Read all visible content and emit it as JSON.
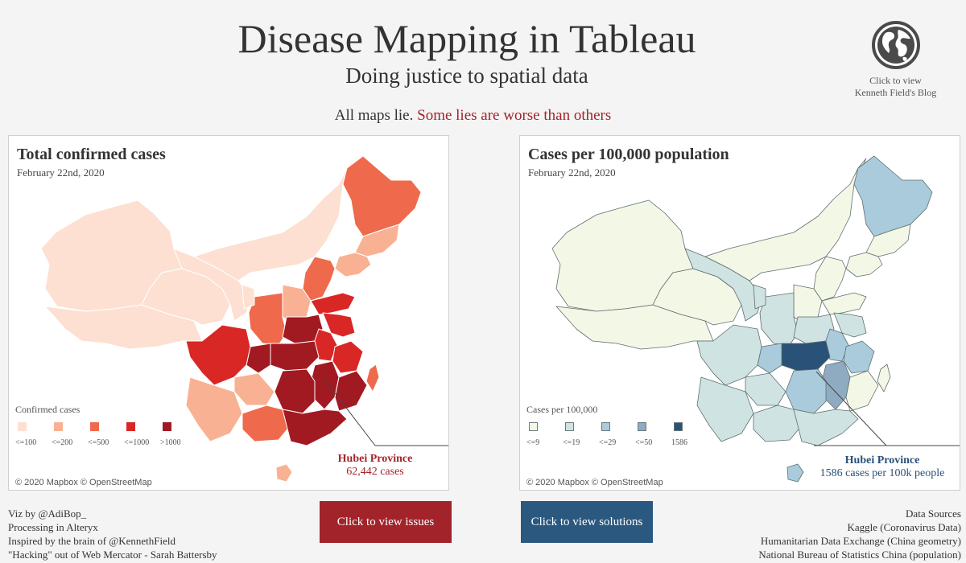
{
  "header": {
    "title": "Disease Mapping in Tableau",
    "subtitle": "Doing justice to spatial data",
    "tagline_plain": "All maps lie.",
    "tagline_red": "Some lies are worse than others",
    "highlight_color": "#a3232a"
  },
  "blog_link": {
    "icon": "globe-icon",
    "line1": "Click to view",
    "line2": "Kenneth Field's Blog"
  },
  "left_map": {
    "title": "Total confirmed cases",
    "date": "February 22nd, 2020",
    "legend_title": "Confirmed cases",
    "legend": [
      {
        "label": "<=100",
        "color": "#fde0d2"
      },
      {
        "label": "<=200",
        "color": "#f9b193"
      },
      {
        "label": "<=500",
        "color": "#ef6a4c"
      },
      {
        "label": "<=1000",
        "color": "#d92726"
      },
      {
        "label": ">1000",
        "color": "#a11a22"
      }
    ],
    "callout_name": "Hubei Province",
    "callout_value": "62,442 cases",
    "callout_color": "#a3232a",
    "credit": "© 2020 Mapbox © OpenStreetMap"
  },
  "right_map": {
    "title": "Cases per 100,000 population",
    "date": "February 22nd, 2020",
    "legend_title": "Cases per 100,000",
    "legend": [
      {
        "label": "<=9",
        "color": "#f3f7e6"
      },
      {
        "label": "<=19",
        "color": "#cfe3e2"
      },
      {
        "label": "<=29",
        "color": "#a9cbdb"
      },
      {
        "label": "<=50",
        "color": "#8fabc2"
      },
      {
        "label": "1586",
        "color": "#2a5178"
      }
    ],
    "callout_name": "Hubei Province",
    "callout_value": "1586 cases per 100k people",
    "callout_color": "#2a5178",
    "credit": "© 2020 Mapbox © OpenStreetMap"
  },
  "buttons": {
    "issues": "Click to view issues",
    "solutions": "Click to view solutions",
    "issues_color": "#a3232a",
    "solutions_color": "#2a587f"
  },
  "footer_left": [
    "Viz by @AdiBop_",
    "Processing in Alteryx",
    "Inspired by the brain of @KennethField",
    "\"Hacking\" out of Web Mercator - Sarah Battersby"
  ],
  "footer_right": [
    "Data Sources",
    "Kaggle (Coronavirus Data)",
    "Humanitarian Data Exchange (China geometry)",
    "National Bureau of Statistics China (population)"
  ]
}
